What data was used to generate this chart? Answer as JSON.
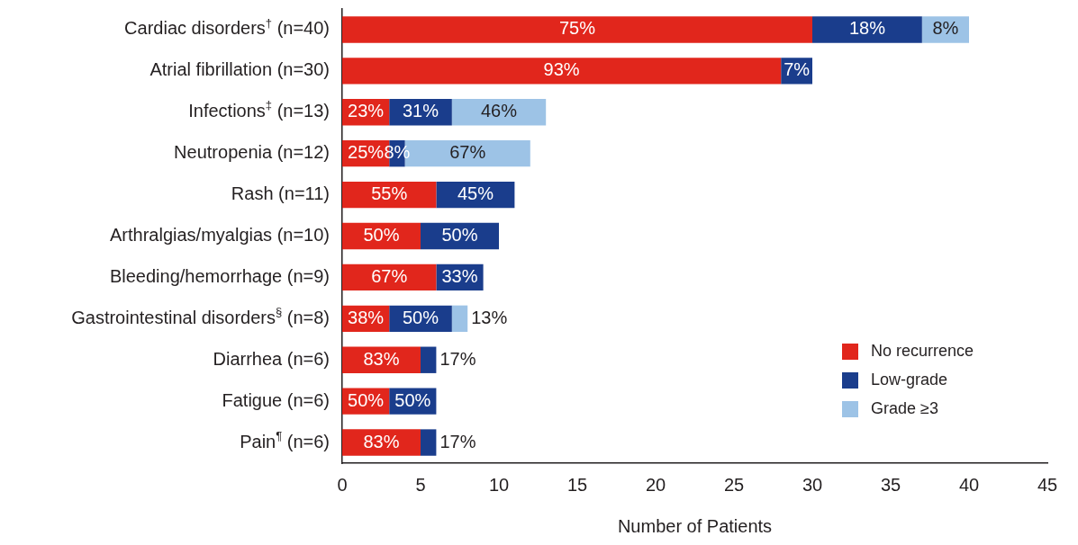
{
  "chart_data": {
    "type": "bar",
    "orientation": "horizontal",
    "stacked": true,
    "xlabel": "Number of Patients",
    "categories": [
      "Cardiac disorders$^{†}$ (n=40)",
      "Atrial fibrillation (n=30)",
      "Infections$^{‡}$ (n=13)",
      "Neutropenia (n=12)",
      "Rash (n=11)",
      "Arthralgias/myalgias (n=10)",
      "Bleeding/hemorrhage (n=9)",
      "Gastrointestinal disorders$^{§}$ (n=8)",
      "Diarrhea (n=6)",
      "Fatigue (n=6)",
      "Pain$^{¶}$ (n=6)"
    ],
    "series": [
      {
        "name": "No recurrence",
        "color": "#e1261c",
        "values": [
          30,
          28,
          3,
          3,
          6,
          5,
          6,
          3,
          5,
          3,
          5
        ]
      },
      {
        "name": "Low-grade",
        "color": "#1a3d8c",
        "values": [
          7,
          2,
          4,
          1,
          5,
          5,
          3,
          4,
          1,
          3,
          1
        ]
      },
      {
        "name": "Grade ≥3",
        "color": "#9dc3e6",
        "values": [
          3,
          null,
          6,
          8,
          null,
          null,
          null,
          1,
          null,
          null,
          null
        ]
      }
    ],
    "annotations": [
      {
        "text": "75%",
        "x": 15,
        "y": "Cardiac disorders$^{†}$ (n=40)"
      },
      {
        "text": "18%",
        "x": 33.5,
        "y": "Cardiac disorders$^{†}$ (n=40)"
      },
      {
        "text": "8%",
        "x": 38.5,
        "y": "Cardiac disorders$^{†}$ (n=40)"
      },
      {
        "text": "93%",
        "x": 14,
        "y": "Atrial fibrillation (n=30)"
      },
      {
        "text": "7%",
        "x": 29,
        "y": "Atrial fibrillation (n=30)"
      },
      {
        "text": "23%",
        "x": 1.5,
        "y": "Infections$^{‡}$ (n=13)"
      },
      {
        "text": "31%",
        "x": 5,
        "y": "Infections$^{‡}$ (n=13)"
      },
      {
        "text": "46%",
        "x": 10,
        "y": "Infections$^{‡}$ (n=13)"
      },
      {
        "text": "25%",
        "x": 1.5,
        "y": "Neutropenia (n=12)"
      },
      {
        "text": "8%",
        "x": 3.5,
        "y": "Neutropenia (n=12)"
      },
      {
        "text": "67%",
        "x": 8,
        "y": "Neutropenia (n=12)"
      },
      {
        "text": "55%",
        "x": 3,
        "y": "Rash (n=11)"
      },
      {
        "text": "45%",
        "x": 8.5,
        "y": "Rash (n=11)"
      },
      {
        "text": "50%",
        "x": 2.5,
        "y": "Arthralgias/myalgias (n=10)"
      },
      {
        "text": "50%",
        "x": 7.5,
        "y": "Arthralgias/myalgias (n=10)"
      },
      {
        "text": "67%",
        "x": 3,
        "y": "Bleeding/hemorrhage (n=9)"
      },
      {
        "text": "33%",
        "x": 7.5,
        "y": "Bleeding/hemorrhage (n=9)"
      },
      {
        "text": "38%",
        "x": 1.5,
        "y": "Gastrointestinal disorders$^{§}$ (n=8)"
      },
      {
        "text": "50%",
        "x": 5,
        "y": "Gastrointestinal disorders$^{§}$ (n=8)"
      },
      {
        "text": "13%",
        "x": 8,
        "y": "Gastrointestinal disorders$^{§}$ (n=8)"
      },
      {
        "text": "83%",
        "x": 2.5,
        "y": "Diarrhea (n=6)"
      },
      {
        "text": "17%",
        "x": 6,
        "y": "Diarrhea (n=6)"
      },
      {
        "text": "50%",
        "x": 1.5,
        "y": "Fatigue (n=6)"
      },
      {
        "text": "50%",
        "x": 4.5,
        "y": "Fatigue (n=6)"
      },
      {
        "text": "83%",
        "x": 2.5,
        "y": "Pain$^{¶}$ (n=6)"
      },
      {
        "text": "17%",
        "x": 6,
        "y": "Pain$^{¶}$ (n=6)"
      }
    ],
    "xlim": [
      0,
      45
    ],
    "xticks": [
      0,
      5,
      10,
      15,
      20,
      25,
      30,
      35,
      40,
      45
    ],
    "grid": false,
    "legend": "bottom right"
  }
}
